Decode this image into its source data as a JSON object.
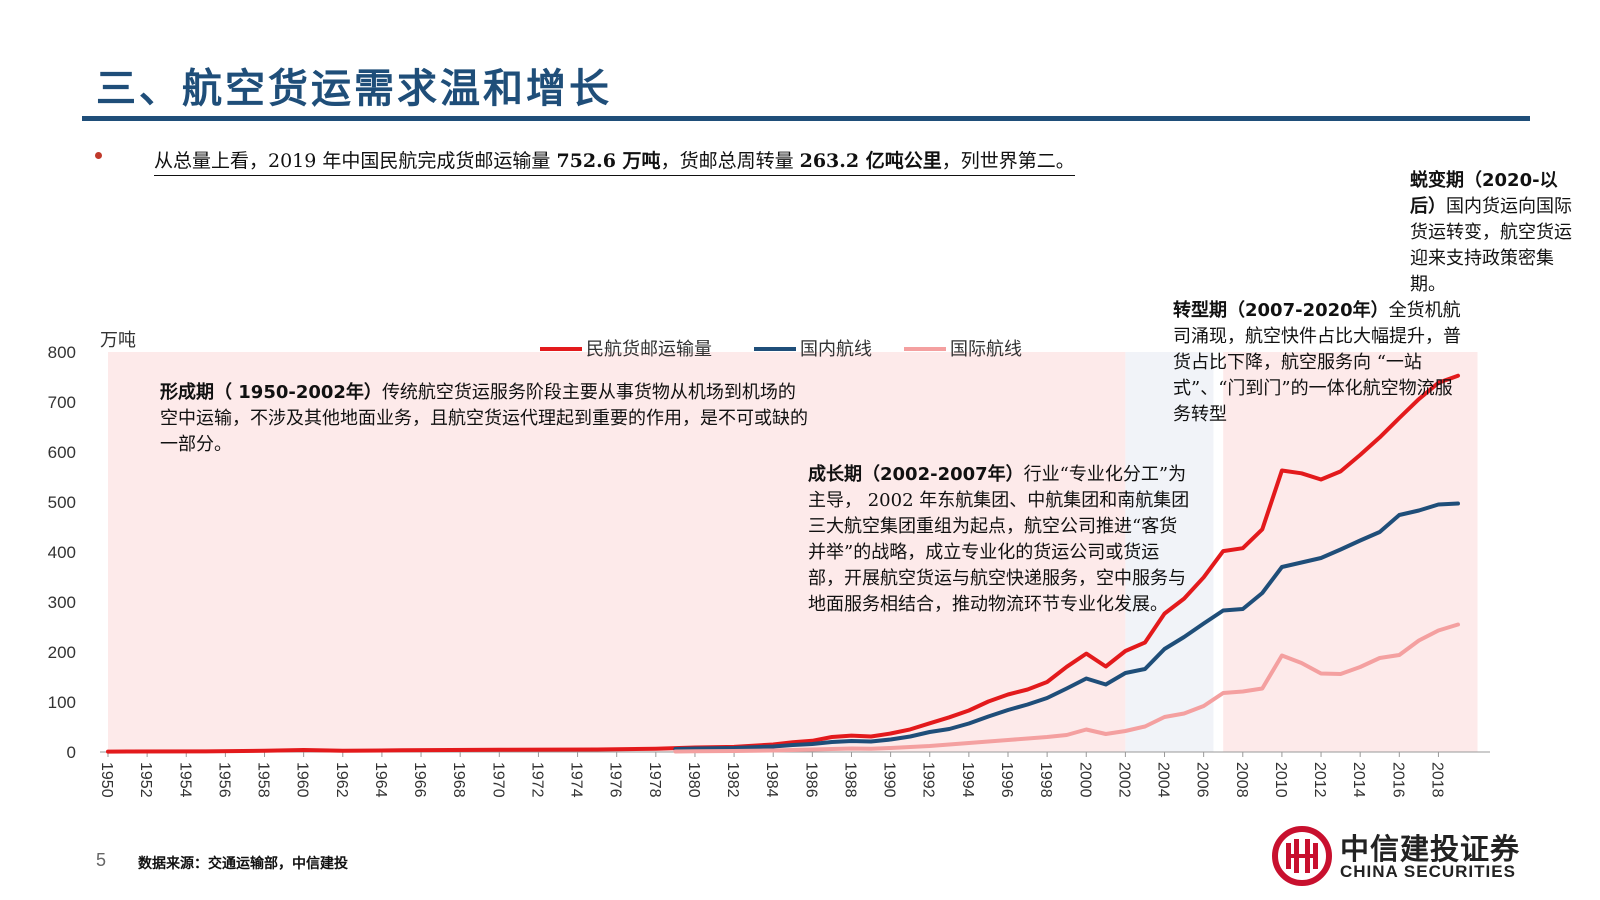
{
  "header": {
    "title": "三、航空货运需求温和增长"
  },
  "summary": {
    "part1": "从总量上看，2019 年中国民航完成货邮运输量 ",
    "bold1": "752.6 万吨",
    "part2": "，货邮总周转量 ",
    "bold2": "263.2 亿吨公里",
    "part3": "，列世界第二。"
  },
  "annotations": {
    "formation": {
      "head": "形成期（ 1950-2002年）",
      "body": "传统航空货运服务阶段主要从事货物从机场到机场的空中运输，不涉及其他地面业务，且航空货运代理起到重要的作用，是不可或缺的一部分。"
    },
    "growth": {
      "head": "成长期（2002-2007年）",
      "body": "行业“专业化分工”为主导， 2002 年东航集团、中航集团和南航集团三大航空集团重组为起点，航空公司推进“客货并举”的战略，成立专业化的货运公司或货运部，开展航空货运与航空快递服务，空中服务与地面服务相结合，推动物流环节专业化发展。"
    },
    "transformation": {
      "head": "转型期（2007-2020年）",
      "body": "全货机航司涌现，航空快件占比大幅提升，普货占比下降，航空服务向 “一站式”、“门到门”的一体化航空物流服务转型"
    },
    "metamorphosis": {
      "head": "蜕变期（2020-以后）",
      "body": "国内货运向国际货运转变，航空货运迎来支持政策密集期。"
    }
  },
  "footer": {
    "page_number": "5",
    "source": "数据来源：交通运输部，中信建投"
  },
  "logo": {
    "name_cn": "中信建投证券",
    "name_en": "CHINA SECURITIES"
  },
  "colors": {
    "title": "#1f4e79",
    "total": "#e31a1c",
    "domestic": "#1f4e79",
    "international": "#f4a0a0",
    "phase_bg": "#fdeaea"
  },
  "chart_data": {
    "type": "line",
    "unit_label": "万吨",
    "ylim": [
      0,
      800
    ],
    "yticks": [
      0,
      100,
      200,
      300,
      400,
      500,
      600,
      700,
      800
    ],
    "xlim": [
      1950,
      2019
    ],
    "xticks": [
      "1950",
      "1952",
      "1954",
      "1956",
      "1958",
      "1960",
      "1962",
      "1964",
      "1966",
      "1968",
      "1970",
      "1972",
      "1974",
      "1976",
      "1978",
      "1980",
      "1982",
      "1984",
      "1986",
      "1988",
      "1990",
      "1992",
      "1994",
      "1996",
      "1998",
      "2000",
      "2002",
      "2004",
      "2006",
      "2008",
      "2010",
      "2012",
      "2014",
      "2016",
      "2018"
    ],
    "legend_position": "top",
    "phases": [
      {
        "start": 1950,
        "end": 2002,
        "shaded": true
      },
      {
        "start": 2002,
        "end": 2006.5,
        "shaded": true
      },
      {
        "start": 2006.5,
        "end": 2007,
        "shaded": false
      },
      {
        "start": 2007,
        "end": 2020,
        "shaded": true
      }
    ],
    "series": [
      {
        "name": "民航货邮运输量",
        "color": "#e31a1c",
        "x": [
          1950,
          1955,
          1958,
          1960,
          1962,
          1965,
          1970,
          1975,
          1978,
          1980,
          1982,
          1984,
          1985,
          1986,
          1987,
          1988,
          1989,
          1990,
          1991,
          1992,
          1993,
          1994,
          1995,
          1996,
          1997,
          1998,
          1999,
          2000,
          2001,
          2002,
          2003,
          2004,
          2005,
          2006,
          2007,
          2008,
          2009,
          2010,
          2011,
          2012,
          2013,
          2014,
          2015,
          2016,
          2017,
          2018,
          2019
        ],
        "y": [
          0.7,
          1.2,
          2.5,
          4.0,
          2.5,
          3.5,
          4.5,
          5.0,
          6.4,
          8.9,
          10.2,
          15.0,
          19.5,
          22.4,
          29.9,
          32.8,
          31.0,
          37.0,
          45.2,
          57.5,
          69.4,
          82.9,
          101.1,
          115.0,
          124.9,
          140.1,
          170.4,
          196.7,
          171.0,
          202.1,
          219.0,
          276.7,
          306.7,
          349.4,
          401.8,
          407.6,
          445.5,
          563.0,
          557.5,
          545.0,
          561.3,
          594.1,
          629.3,
          668.0,
          705.9,
          738.5,
          752.6
        ]
      },
      {
        "name": "国内航线",
        "color": "#1f4e79",
        "x": [
          1979,
          1980,
          1982,
          1984,
          1985,
          1986,
          1987,
          1988,
          1989,
          1990,
          1991,
          1992,
          1993,
          1994,
          1995,
          1996,
          1997,
          1998,
          1999,
          2000,
          2001,
          2002,
          2003,
          2004,
          2005,
          2006,
          2007,
          2008,
          2009,
          2010,
          2011,
          2012,
          2013,
          2014,
          2015,
          2016,
          2017,
          2018,
          2019
        ],
        "y": [
          6.0,
          7.0,
          8.0,
          11.0,
          14.0,
          16.0,
          20.0,
          22.0,
          21.0,
          25.0,
          31.0,
          40.0,
          46.0,
          57.0,
          71.0,
          84.0,
          95.0,
          108.0,
          127.0,
          147.0,
          135.0,
          158.0,
          166.0,
          206.0,
          230.0,
          257.0,
          283.0,
          286.0,
          318.0,
          370.0,
          379.0,
          388.0,
          405.0,
          423.0,
          440.0,
          474.0,
          483.0,
          495.0,
          497.0
        ]
      },
      {
        "name": "国际航线",
        "color": "#f4a0a0",
        "x": [
          1979,
          1980,
          1982,
          1984,
          1985,
          1986,
          1987,
          1988,
          1989,
          1990,
          1991,
          1992,
          1993,
          1994,
          1995,
          1996,
          1997,
          1998,
          1999,
          2000,
          2001,
          2002,
          2003,
          2004,
          2005,
          2006,
          2007,
          2008,
          2009,
          2010,
          2011,
          2012,
          2013,
          2014,
          2015,
          2016,
          2017,
          2018,
          2019
        ],
        "y": [
          1.0,
          1.5,
          2.0,
          3.0,
          4.0,
          5.0,
          6.0,
          7.0,
          6.5,
          8.0,
          10.0,
          12.0,
          15.0,
          18.0,
          21.0,
          24.0,
          27.0,
          30.0,
          34.0,
          45.0,
          36.0,
          42.0,
          51.0,
          70.0,
          77.0,
          92.0,
          118.0,
          121.0,
          127.0,
          193.0,
          178.0,
          157.0,
          156.0,
          170.0,
          188.0,
          194.0,
          223.0,
          243.0,
          255.0
        ]
      }
    ]
  }
}
